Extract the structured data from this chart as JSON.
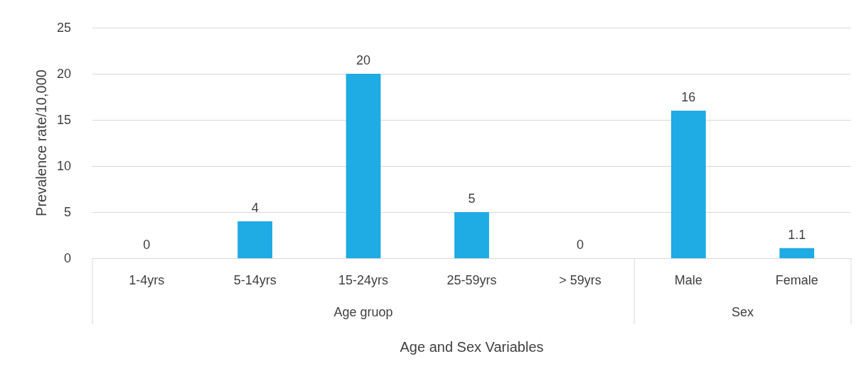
{
  "chart_data": {
    "type": "bar",
    "ylabel": "Prevalence rate/10,000",
    "xlabel": "Age and Sex Variables",
    "categories": [
      "1-4yrs",
      "5-14yrs",
      "15-24yrs",
      "25-59yrs",
      "> 59yrs",
      "Male",
      "Female"
    ],
    "values": [
      0,
      4,
      20,
      5,
      0,
      16,
      1.1
    ],
    "color": "#1fabe3",
    "ylim": [
      0,
      25
    ],
    "yticks": [
      0,
      5,
      10,
      15,
      20,
      25
    ],
    "grid": "y",
    "data_labels": true,
    "annotations": [
      "Age gruop",
      "Sex"
    ]
  }
}
